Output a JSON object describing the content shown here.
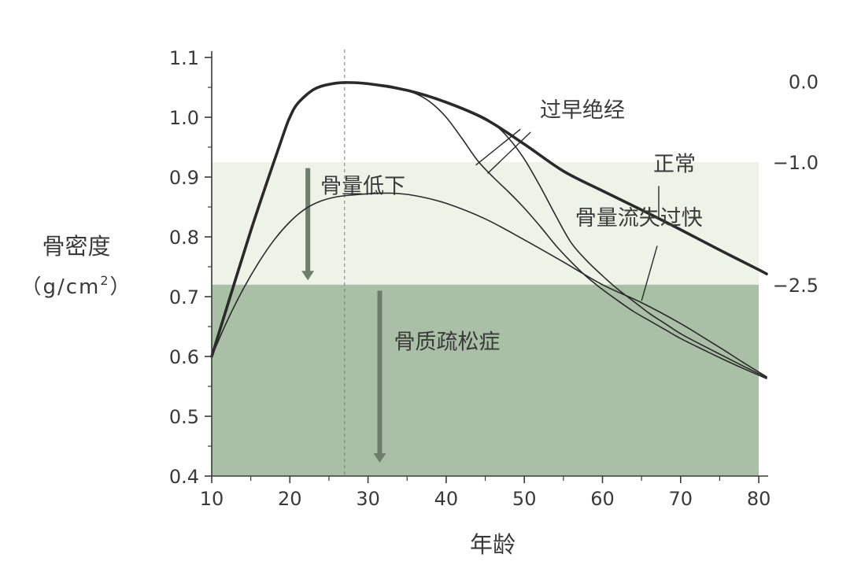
{
  "chart_data": {
    "type": "line",
    "title": "",
    "xlabel": "年龄",
    "ylabel": "骨密度",
    "ylabel_unit": {
      "open": "（",
      "base": "g/cm",
      "sup": "2",
      "close": "）"
    },
    "xlim": [
      10,
      82
    ],
    "ylim": [
      0.4,
      1.1
    ],
    "x_ticks": [
      10,
      20,
      30,
      40,
      50,
      60,
      70,
      80
    ],
    "x_tick_labels": [
      "10",
      "20",
      "30",
      "40",
      "50",
      "60",
      "70",
      "80"
    ],
    "y_ticks": [
      0.4,
      0.5,
      0.6,
      0.7,
      0.8,
      0.9,
      1.0,
      1.1
    ],
    "y_tick_labels": [
      "0.4",
      "0.5",
      "0.6",
      "0.7",
      "0.8",
      "0.9",
      "1.0",
      "1.1"
    ],
    "right_axis": {
      "labels": [
        {
          "text": "0.0",
          "y": 1.06
        },
        {
          "text": "−1.0",
          "y": 0.925
        },
        {
          "text": "−2.5",
          "y": 0.72
        }
      ]
    },
    "grid": false,
    "peak_reference_x": 27,
    "zones": [
      {
        "label": "骨量低下",
        "y_range": [
          0.72,
          0.925
        ],
        "color": "#eef3e8",
        "arrow_x": 22.3,
        "arrow_y": [
          0.915,
          0.73
        ]
      },
      {
        "label": "骨质疏松症",
        "y_range": [
          0.4,
          0.72
        ],
        "color": "#a9c0a6",
        "arrow_x": 31.5,
        "arrow_y": [
          0.71,
          0.425
        ]
      }
    ],
    "series": [
      {
        "name": "正常",
        "stroke": "heavy",
        "x": [
          10,
          15,
          19,
          20,
          21,
          23,
          25,
          27,
          30,
          35,
          40,
          45,
          50,
          55,
          60,
          65,
          70,
          75,
          80,
          81
        ],
        "values": [
          0.6,
          0.81,
          0.965,
          1.0,
          1.023,
          1.046,
          1.055,
          1.058,
          1.056,
          1.045,
          1.025,
          0.997,
          0.955,
          0.91,
          0.877,
          0.845,
          0.812,
          0.778,
          0.745,
          0.738
        ]
      },
      {
        "name": "过早绝经",
        "stroke": "thin",
        "x": [
          30,
          33,
          36,
          38,
          40,
          42,
          44,
          46,
          48,
          50,
          52,
          54,
          56,
          58,
          60,
          62,
          64,
          66,
          68,
          70,
          72,
          75,
          78,
          81
        ],
        "values": [
          1.056,
          1.052,
          1.04,
          1.025,
          1.0,
          0.965,
          0.928,
          0.9,
          0.875,
          0.848,
          0.818,
          0.786,
          0.758,
          0.733,
          0.712,
          0.693,
          0.675,
          0.66,
          0.645,
          0.63,
          0.617,
          0.598,
          0.58,
          0.563
        ]
      },
      {
        "name": "骨量流失过快",
        "stroke": "thin",
        "x": [
          40,
          44,
          46,
          48,
          50,
          52,
          54,
          56,
          58,
          60,
          62,
          64,
          66,
          68,
          70,
          72,
          75,
          78,
          81
        ],
        "values": [
          1.025,
          1.005,
          0.99,
          0.965,
          0.93,
          0.885,
          0.836,
          0.79,
          0.76,
          0.735,
          0.712,
          0.692,
          0.672,
          0.655,
          0.638,
          0.624,
          0.604,
          0.584,
          0.565
        ]
      },
      {
        "name": "骨量低下",
        "stroke": "thin",
        "x": [
          10,
          12,
          14,
          16,
          18,
          20,
          22,
          24,
          26,
          28,
          30,
          33,
          36,
          40,
          45,
          50,
          55,
          60,
          65,
          70,
          75,
          78,
          81
        ],
        "values": [
          0.6,
          0.66,
          0.712,
          0.757,
          0.795,
          0.825,
          0.847,
          0.86,
          0.867,
          0.87,
          0.872,
          0.873,
          0.869,
          0.856,
          0.83,
          0.795,
          0.758,
          0.72,
          0.69,
          0.655,
          0.615,
          0.59,
          0.566
        ]
      }
    ],
    "annotations": [
      {
        "text": "过早绝经",
        "tx": 52,
        "ty": 1.0,
        "pointers": [
          {
            "from": [
              49.5,
              0.98
            ],
            "to": [
              43.8,
              0.92
            ]
          },
          {
            "from": [
              50.8,
              0.975
            ],
            "to": [
              45.3,
              0.906
            ]
          }
        ]
      },
      {
        "text": "正常",
        "tx": 66.5,
        "ty": 0.91,
        "pointers": [
          {
            "from": [
              67.2,
              0.885
            ],
            "to": [
              67.2,
              0.832
            ]
          }
        ]
      },
      {
        "text": "骨量流失过快",
        "tx": 56.5,
        "ty": 0.82,
        "pointers": [
          {
            "from": [
              67,
              0.785
            ],
            "to": [
              65,
              0.693
            ]
          }
        ]
      }
    ]
  }
}
